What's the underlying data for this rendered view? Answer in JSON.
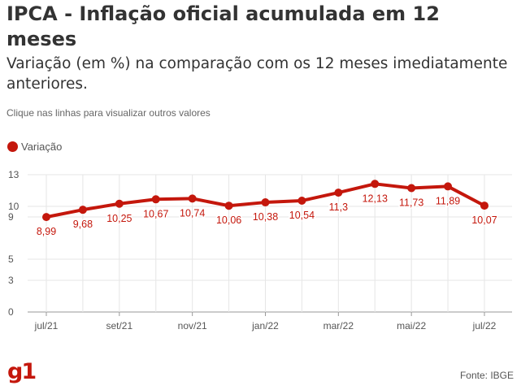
{
  "header": {
    "title": "IPCA - Inflação oficial acumulada em 12 meses",
    "subtitle": "Variação (em %) na comparação com os 12 meses imediatamente anteriores.",
    "note": "Clique nas linhas para visualizar outros valores"
  },
  "legend": {
    "label": "Variação"
  },
  "footer": {
    "logo": "g1",
    "source": "Fonte: IBGE"
  },
  "colors": {
    "series": "#c4170c",
    "grid": "#e6e6e6",
    "axis": "#999999",
    "label": "#c4170c"
  },
  "chart_data": {
    "type": "line",
    "x": [
      "jul/21",
      "ago/21",
      "set/21",
      "out/21",
      "nov/21",
      "dez/21",
      "jan/22",
      "fev/22",
      "mar/22",
      "abr/22",
      "mai/22",
      "jun/22",
      "jul/22"
    ],
    "x_tick_labels": [
      "jul/21",
      "set/21",
      "nov/21",
      "jan/22",
      "mar/22",
      "mai/22",
      "jul/22"
    ],
    "y_tick_labels": [
      "0",
      "3",
      "5",
      "9",
      "10",
      "13"
    ],
    "ylim": [
      0,
      13
    ],
    "series": [
      {
        "name": "Variação",
        "values": [
          8.99,
          9.68,
          10.25,
          10.67,
          10.74,
          10.06,
          10.38,
          10.54,
          11.3,
          12.13,
          11.73,
          11.89,
          10.07
        ],
        "labels": [
          "8,99",
          "9,68",
          "10,25",
          "10,67",
          "10,74",
          "10,06",
          "10,38",
          "10,54",
          "11,3",
          "12,13",
          "11,73",
          "11,89",
          "10,07"
        ]
      }
    ],
    "grid": true,
    "legend_position": "top-left"
  }
}
